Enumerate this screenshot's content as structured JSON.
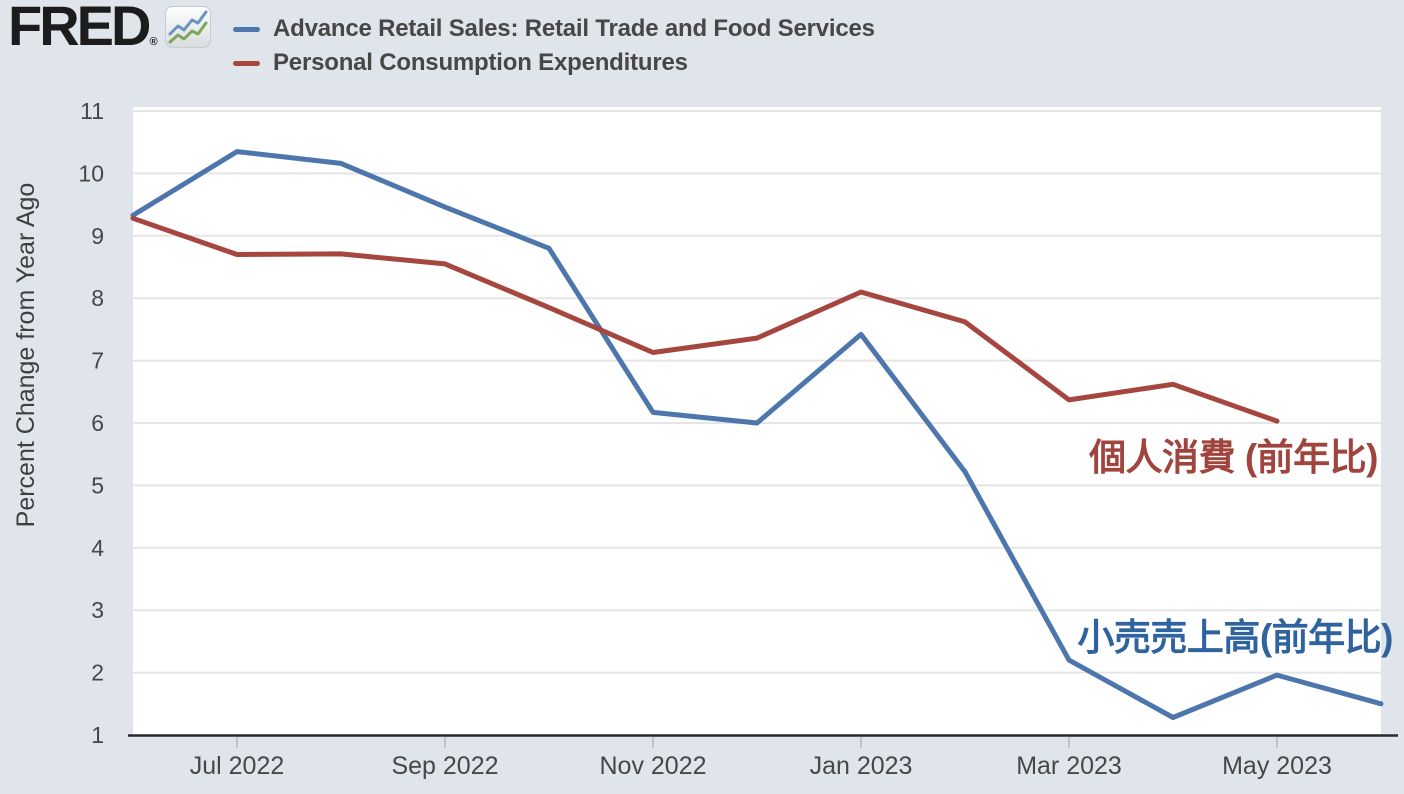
{
  "header": {
    "logo_text": "FRED",
    "registered_mark": "®",
    "legend": [
      {
        "label": "Advance Retail Sales: Retail Trade and Food Services",
        "color": "#4d76ad"
      },
      {
        "label": "Personal Consumption Expenditures",
        "color": "#a5463f"
      }
    ]
  },
  "chart_data": {
    "type": "line",
    "title": "",
    "xlabel": "",
    "ylabel": "Percent Change from Year Ago",
    "ylim": [
      1,
      11.1
    ],
    "grid": true,
    "legend_position": "top-left",
    "background_color": "#dfe5eb",
    "plot_background_color": "#ffffff",
    "categories": [
      "Jun 2022",
      "Jul 2022",
      "Aug 2022",
      "Sep 2022",
      "Oct 2022",
      "Nov 2022",
      "Dec 2022",
      "Jan 2023",
      "Feb 2023",
      "Mar 2023",
      "Apr 2023",
      "May 2023",
      "Jun 2023"
    ],
    "x_tick_labels": [
      "Jul 2022",
      "Sep 2022",
      "Nov 2022",
      "Jan 2023",
      "Mar 2023",
      "May 2023"
    ],
    "x_tick_indices": [
      1,
      3,
      5,
      7,
      9,
      11
    ],
    "y_ticks": [
      1,
      2,
      3,
      4,
      5,
      6,
      7,
      8,
      9,
      10,
      11
    ],
    "series": [
      {
        "name": "Advance Retail Sales: Retail Trade and Food Services",
        "color": "#4d76ad",
        "values": [
          9.33,
          10.35,
          10.16,
          9.46,
          8.8,
          6.17,
          6.0,
          7.42,
          5.22,
          2.2,
          1.28,
          1.96,
          1.5
        ]
      },
      {
        "name": "Personal Consumption Expenditures",
        "color": "#a5463f",
        "values": [
          9.28,
          8.7,
          8.71,
          8.55,
          7.85,
          7.13,
          7.36,
          8.1,
          7.62,
          6.37,
          6.62,
          6.03
        ]
      }
    ],
    "annotations": [
      {
        "text": "個人消費 (前年比)",
        "color": "#a0443e",
        "refers_to": "Personal Consumption Expenditures"
      },
      {
        "text": "小売売上高(前年比)",
        "color": "#2f639f",
        "refers_to": "Advance Retail Sales"
      }
    ]
  }
}
